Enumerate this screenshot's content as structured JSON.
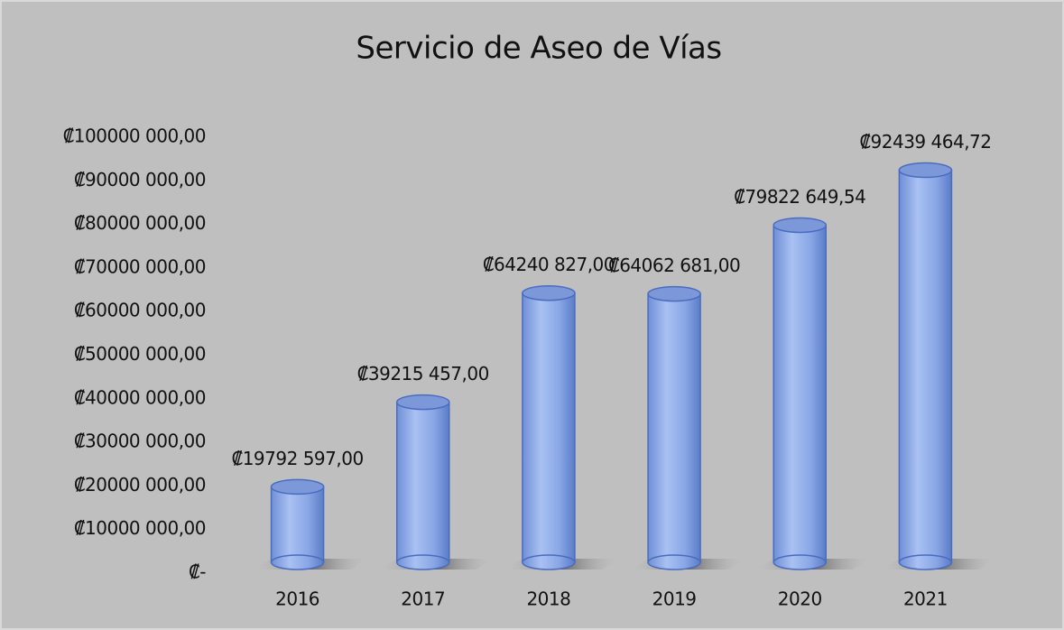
{
  "chart_data": {
    "type": "bar",
    "title": "Servicio de Aseo de Vías",
    "categories": [
      "2016",
      "2017",
      "2018",
      "2019",
      "2020",
      "2021"
    ],
    "values": [
      19792597,
      39215457,
      64240827,
      64062681,
      79822649.54,
      92439464.72
    ],
    "value_labels": [
      "₡19792 597,00",
      "₡39215 457,00",
      "₡64240 827,00",
      "₡64062 681,00",
      "₡79822 649,54",
      "₡92439 464,72"
    ],
    "color": "#8eaae6",
    "ylim": [
      0,
      100000000
    ],
    "yticks": [
      {
        "value": 0,
        "label": "₡-"
      },
      {
        "value": 10000000,
        "label": "₡10000 000,00"
      },
      {
        "value": 20000000,
        "label": "₡20000 000,00"
      },
      {
        "value": 30000000,
        "label": "₡30000 000,00"
      },
      {
        "value": 40000000,
        "label": "₡40000 000,00"
      },
      {
        "value": 50000000,
        "label": "₡50000 000,00"
      },
      {
        "value": 60000000,
        "label": "₡60000 000,00"
      },
      {
        "value": 70000000,
        "label": "₡70000 000,00"
      },
      {
        "value": 80000000,
        "label": "₡80000 000,00"
      },
      {
        "value": 90000000,
        "label": "₡90000 000,00"
      },
      {
        "value": 100000000,
        "label": "₡100000 000,00"
      }
    ],
    "grid": false
  }
}
